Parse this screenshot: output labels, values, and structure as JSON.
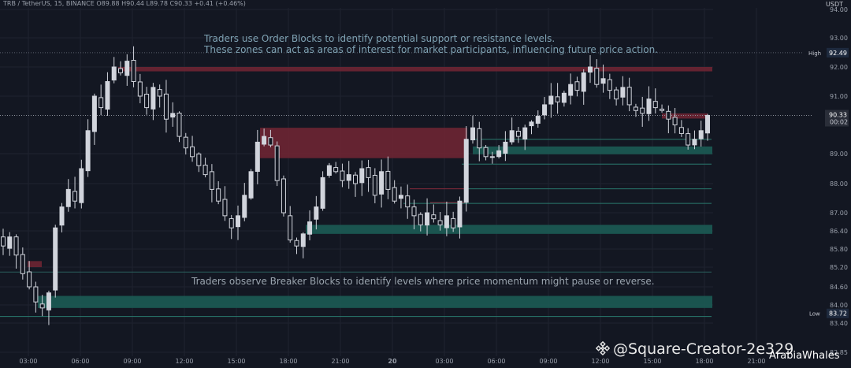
{
  "header": {
    "symbol_line": "TRB / TetherUS, 15, BINANCE  O89.88  H90.44  L89.78  C90.33  +0.41 (+0.46%)",
    "currency": "USDT"
  },
  "annotations": {
    "order_blocks_line1": "Traders use Order Blocks to identify potential support or resistance levels.",
    "order_blocks_line2": "These zones can act as areas of interest for market participants, influencing future price action.",
    "breaker_blocks": "Traders observe Breaker Blocks to identify levels where price momentum might pause or reverse."
  },
  "price_axis": {
    "ticks": [
      "94.00",
      "93.00",
      "92.00",
      "91.00",
      "89.00",
      "88.00",
      "87.00",
      "86.40",
      "85.80",
      "85.20",
      "84.60",
      "84.00",
      "83.40",
      "82.85"
    ],
    "high_label": "High",
    "high_value": "92.49",
    "current_price": "90.33",
    "countdown": "00:02",
    "low_label": "Low",
    "low_value": "83.72"
  },
  "time_axis": {
    "ticks": [
      "03:00",
      "06:00",
      "09:00",
      "12:00",
      "15:00",
      "18:00",
      "21:00",
      "20",
      "03:00",
      "06:00",
      "09:00",
      "12:00",
      "15:00",
      "18:00",
      "21:00"
    ]
  },
  "watermark": {
    "text": "@Square-Creator-2e329",
    "secondary": "ArabiaWhales"
  },
  "colors": {
    "background": "#131722",
    "candle": "#d1d4dc",
    "bearish_zone": "#6e2533",
    "bullish_zone": "#1c5b54",
    "grid": "#1f2330"
  },
  "chart_data": {
    "type": "candlestick",
    "title": "",
    "xlabel": "",
    "ylabel": "",
    "high": 92.49,
    "low": 83.72,
    "last_close": 90.33,
    "close_path": [
      85.9,
      86.2,
      85.6,
      85.0,
      84.6,
      84.1,
      83.9,
      84.4,
      86.5,
      87.2,
      87.8,
      87.4,
      88.5,
      89.8,
      91.0,
      90.6,
      91.5,
      92.0,
      91.8,
      92.2,
      91.5,
      91.0,
      90.6,
      91.3,
      91.0,
      90.2,
      90.4,
      89.6,
      89.2,
      88.9,
      88.6,
      88.3,
      87.8,
      87.4,
      86.9,
      86.5,
      86.9,
      87.6,
      88.4,
      89.4,
      89.6,
      89.3,
      88.1,
      87.0,
      86.1,
      85.9,
      86.3,
      86.7,
      87.2,
      88.2,
      88.6,
      88.4,
      88.1,
      88.3,
      88.0,
      88.5,
      88.2,
      87.6,
      88.4,
      87.8,
      87.4,
      87.6,
      87.2,
      86.9,
      86.6,
      87.0,
      86.8,
      86.6,
      86.9,
      86.5,
      87.4,
      89.5,
      89.9,
      89.2,
      88.9,
      88.9,
      89.1,
      89.4,
      89.8,
      89.6,
      89.9,
      90.1,
      90.3,
      90.7,
      91.0,
      90.8,
      91.1,
      91.4,
      91.2,
      91.8,
      92.0,
      91.4,
      91.6,
      91.2,
      90.9,
      91.3,
      90.7,
      90.5,
      90.4,
      90.9,
      90.6,
      90.5,
      90.2,
      90.0,
      89.7,
      89.3,
      89.5,
      89.8,
      90.33
    ],
    "order_blocks": [
      {
        "kind": "bearish",
        "top": 92.0,
        "bottom": 91.85
      },
      {
        "kind": "bearish",
        "top": 89.9,
        "bottom": 88.85
      },
      {
        "kind": "bearish",
        "top": 90.4,
        "bottom": 90.22
      }
    ],
    "breaker_blocks": [
      {
        "kind": "bullish",
        "top": 89.25,
        "bottom": 88.98
      },
      {
        "kind": "bullish",
        "top": 86.6,
        "bottom": 86.3
      },
      {
        "kind": "bullish",
        "top": 84.3,
        "bottom": 83.9
      },
      {
        "kind": "bearish",
        "top": 85.4,
        "bottom": 85.2
      }
    ]
  }
}
